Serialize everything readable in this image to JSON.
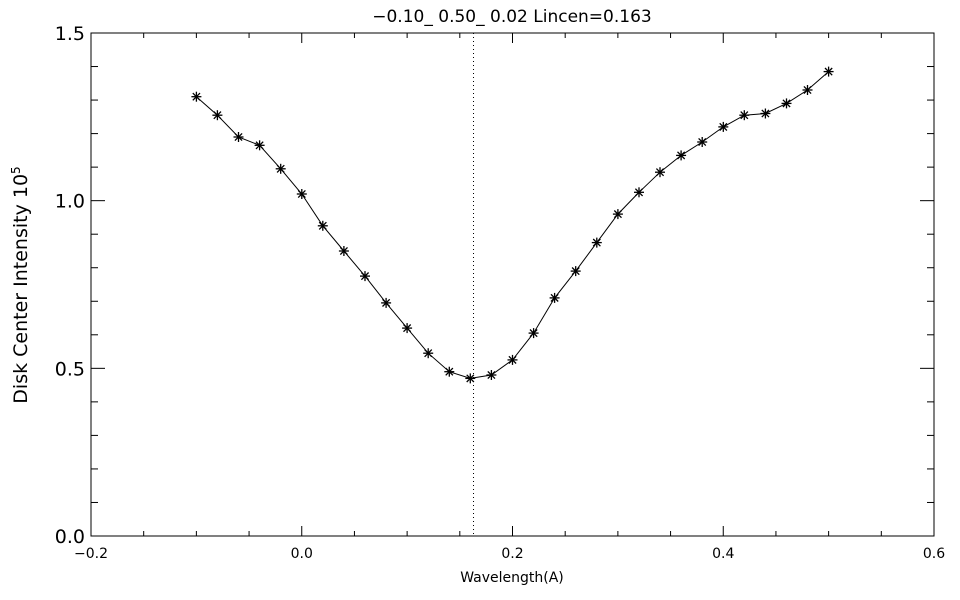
{
  "chart_data": {
    "type": "line",
    "title": "−0.10_ 0.50_ 0.02   Lincen=0.163",
    "xlabel": "Wavelength(A)",
    "ylabel": "Disk Center Intensity 10",
    "ylabel_exponent": "5",
    "xlim": [
      -0.2,
      0.6
    ],
    "ylim": [
      0.0,
      1.5
    ],
    "x_ticks": [
      -0.2,
      0.0,
      0.2,
      0.4,
      0.6
    ],
    "x_tick_labels": [
      "−0.2",
      "0.0",
      "0.2",
      "0.4",
      "0.6"
    ],
    "y_ticks": [
      0.0,
      0.5,
      1.0,
      1.5
    ],
    "y_tick_labels": [
      "0.0",
      "0.5",
      "1.0",
      "1.5"
    ],
    "vline_x": 0.163,
    "marker": "asterisk",
    "grid": false,
    "series": [
      {
        "x": [
          -0.1,
          -0.08,
          -0.06,
          -0.04,
          -0.02,
          0.0,
          0.02,
          0.04,
          0.06,
          0.08,
          0.1,
          0.12,
          0.14,
          0.16,
          0.18,
          0.2,
          0.22,
          0.24,
          0.26,
          0.28,
          0.3,
          0.32,
          0.34,
          0.36,
          0.38,
          0.4,
          0.42,
          0.44,
          0.46,
          0.48,
          0.5
        ],
        "y": [
          1.31,
          1.255,
          1.19,
          1.165,
          1.095,
          1.02,
          0.925,
          0.85,
          0.775,
          0.695,
          0.62,
          0.545,
          0.49,
          0.47,
          0.48,
          0.525,
          0.605,
          0.71,
          0.79,
          0.875,
          0.96,
          1.025,
          1.085,
          1.135,
          1.175,
          1.22,
          1.255,
          1.26,
          1.29,
          1.33,
          1.385
        ]
      }
    ]
  }
}
